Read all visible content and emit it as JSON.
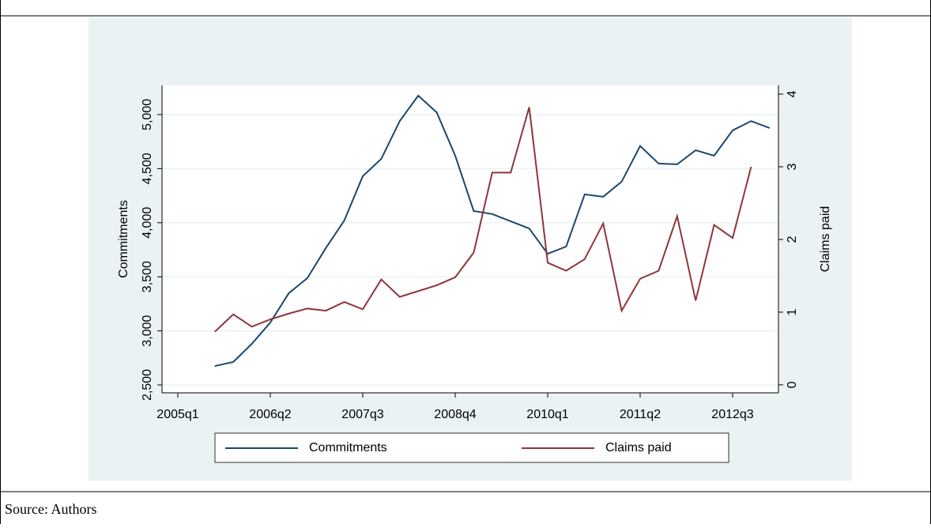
{
  "source": "Source: Authors",
  "chart_data": {
    "type": "line",
    "categories": [
      "2005q1",
      null,
      null,
      null,
      null,
      "2006q2",
      null,
      null,
      null,
      null,
      "2007q3",
      null,
      null,
      null,
      null,
      "2008q4",
      null,
      null,
      null,
      null,
      "2010q1",
      null,
      null,
      null,
      null,
      "2011q2",
      null,
      null,
      null,
      null,
      "2012q3",
      null,
      null
    ],
    "series": [
      {
        "name": "Commitments",
        "color": "#1a476f",
        "values": [
          null,
          null,
          2675,
          2712,
          2880,
          3077,
          3348,
          3487,
          3765,
          4020,
          4430,
          4590,
          4940,
          5175,
          5020,
          4620,
          4108,
          4080,
          4013,
          3947,
          3713,
          3780,
          4262,
          4240,
          4380,
          4710,
          4547,
          4540,
          4670,
          4620,
          4854,
          4940,
          4876
        ]
      },
      {
        "name": "Claims paid",
        "color": "#90353b",
        "axis": "y2",
        "values": [
          null,
          null,
          0.73,
          0.97,
          0.8,
          0.9,
          0.98,
          1.05,
          1.02,
          1.14,
          1.04,
          1.45,
          1.21,
          1.29,
          1.37,
          1.48,
          1.82,
          2.92,
          2.92,
          3.82,
          1.68,
          1.57,
          1.73,
          2.22,
          1.02,
          1.46,
          1.57,
          2.32,
          1.16,
          2.2,
          2.02,
          3.0,
          null
        ]
      }
    ],
    "ylabel": "Commitments",
    "y2label": "Claims paid",
    "ylim": [
      2427,
      5270
    ],
    "yticks": [
      {
        "value": 2500,
        "label": "2,500"
      },
      {
        "value": 3000,
        "label": "3,000"
      },
      {
        "value": 3500,
        "label": "3,500"
      },
      {
        "value": 4000,
        "label": "4,000"
      },
      {
        "value": 4500,
        "label": "4,500"
      },
      {
        "value": 5000,
        "label": "5,000"
      }
    ],
    "y2lim": [
      -0.11,
      4.12
    ],
    "y2ticks": [
      0,
      1,
      2,
      3,
      4
    ],
    "grid": true,
    "legend": "bottom"
  }
}
